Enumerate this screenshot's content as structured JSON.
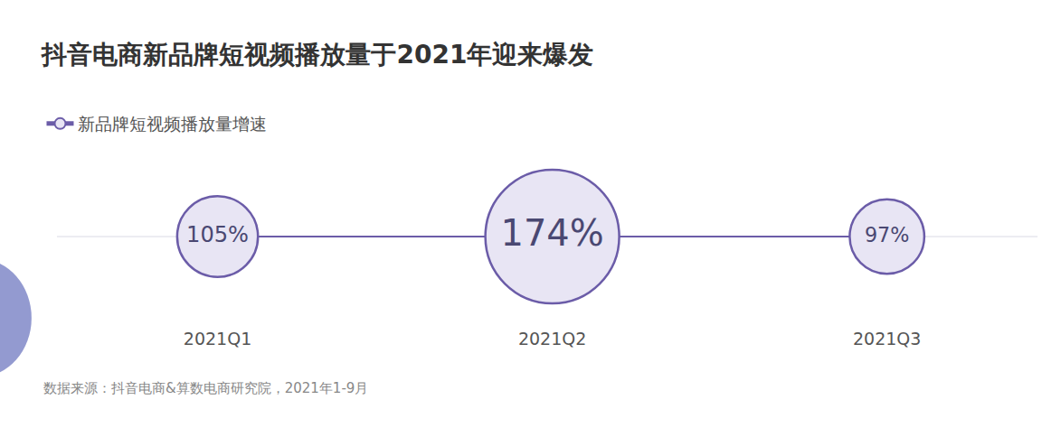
{
  "chart_data": {
    "type": "scatter",
    "title": "抖音电商新品牌短视频播放量于2021年迎来爆发",
    "categories": [
      "2021Q1",
      "2021Q2",
      "2021Q3"
    ],
    "series": [
      {
        "name": "新品牌短视频播放量增速",
        "color": "#6b5ca8",
        "values": [
          105,
          174,
          97
        ],
        "value_labels": [
          "105%",
          "174%",
          "97%"
        ],
        "sizes": [
          105,
          174,
          97
        ]
      }
    ],
    "data_labels": true,
    "legend": "top-left",
    "tick_labels": "x",
    "marker": "circle",
    "grid": false,
    "source": "数据来源：抖音电商&算数电商研究院，2021年1-9月"
  }
}
